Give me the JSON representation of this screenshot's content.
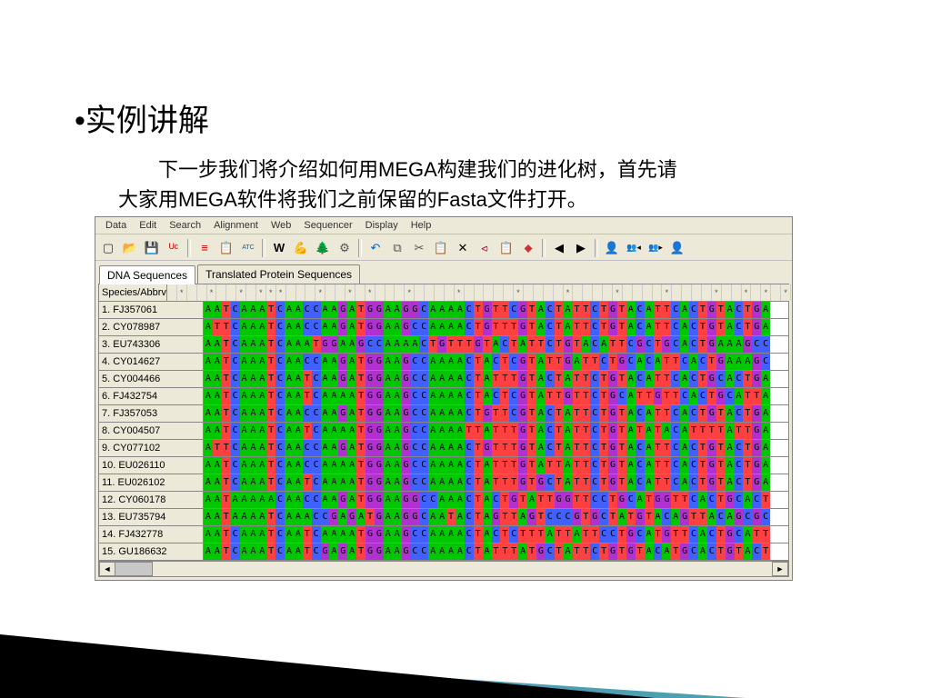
{
  "slide": {
    "bullet": "•",
    "title": "实例讲解",
    "desc_line1": "　　下一步我们将介绍如何用MEGA构建我们的进化树，首先请",
    "desc_line2": "大家用MEGA软件将我们之前保留的Fasta文件打开。"
  },
  "app": {
    "menu": [
      "Data",
      "Edit",
      "Search",
      "Alignment",
      "Web",
      "Sequencer",
      "Display",
      "Help"
    ],
    "toolbar_icons": [
      {
        "name": "new-icon",
        "glyph": "▢",
        "color": "#333"
      },
      {
        "name": "open-icon",
        "glyph": "📂",
        "color": "#b8860b"
      },
      {
        "name": "save-icon",
        "glyph": "💾",
        "color": "#1040c0"
      },
      {
        "name": "format-icon",
        "glyph": "ᵁᶜ",
        "color": "#c00"
      },
      {
        "sep": true
      },
      {
        "name": "align-marked-icon",
        "glyph": "≡",
        "color": "#c00"
      },
      {
        "name": "align-clipboard-icon",
        "glyph": "📋",
        "color": "#886"
      },
      {
        "name": "align-codon-icon",
        "glyph": "ATC",
        "color": "#06a",
        "fs": "7px"
      },
      {
        "sep": true
      },
      {
        "name": "w-icon",
        "glyph": "W",
        "color": "#000",
        "bold": true
      },
      {
        "name": "muscle-icon",
        "glyph": "💪",
        "color": "#c70"
      },
      {
        "name": "tree-icon",
        "glyph": "🌲",
        "color": "#070"
      },
      {
        "name": "settings-icon",
        "glyph": "⚙",
        "color": "#555"
      },
      {
        "sep": true
      },
      {
        "name": "undo-icon",
        "glyph": "↶",
        "color": "#06c"
      },
      {
        "name": "copy-icon",
        "glyph": "⧉",
        "color": "#555"
      },
      {
        "name": "cut-icon",
        "glyph": "✂",
        "color": "#555"
      },
      {
        "name": "paste-icon",
        "glyph": "📋",
        "color": "#555"
      },
      {
        "name": "delete-icon",
        "glyph": "✕",
        "color": "#000"
      },
      {
        "name": "delete-gap-icon",
        "glyph": "⪦",
        "color": "#a04"
      },
      {
        "name": "clipboard2-icon",
        "glyph": "📋",
        "color": "#c33"
      },
      {
        "name": "mark-icon",
        "glyph": "⬥",
        "color": "#c33"
      },
      {
        "sep": true
      },
      {
        "name": "prev-icon",
        "glyph": "◀",
        "color": "#000"
      },
      {
        "name": "next-icon",
        "glyph": "▶",
        "color": "#000"
      },
      {
        "sep": true
      },
      {
        "name": "find-icon",
        "glyph": "👤",
        "color": "#000"
      },
      {
        "name": "find-prev-icon",
        "glyph": "👥◂",
        "color": "#000",
        "fs": "9px"
      },
      {
        "name": "find-next-icon",
        "glyph": "👥▸",
        "color": "#000",
        "fs": "9px"
      },
      {
        "name": "find-mark-icon",
        "glyph": "👤",
        "color": "#000"
      }
    ],
    "tabs": [
      {
        "label": "DNA Sequences",
        "active": true
      },
      {
        "label": "Translated Protein Sequences",
        "active": false
      }
    ],
    "header_species": "Species/Abbrv",
    "base_colors": {
      "A": "nA",
      "T": "nT",
      "C": "nC",
      "G": "nG"
    },
    "rows": [
      {
        "n": "1.",
        "id": "FJ357061",
        "seq": "AATCAAATCAACCAAGATGGAAGGCAAAACTGTTCGTACTATTCTGTACATTCACTGTACTGAAAGCTCA"
      },
      {
        "n": "2.",
        "id": "CY078987",
        "seq": "ATTCAAATCAACCAAGATGGAAGCCAAAACTGTTTGTACTATTCTGTACATTCACTGTACTGAAAGCTCA"
      },
      {
        "n": "3.",
        "id": "EU743306",
        "seq": "AATCAAATCAAATGGAAGCCAAAACTGTTTGTACTATTCTGTACATTCGCTGCACTGAAAGCCAAAGCCA"
      },
      {
        "n": "4.",
        "id": "CY014627",
        "seq": "AATCAAATCAACCAAGATGGAAGCCAAAACTACTCGTATTGATTCTGCACATTCACTGAAAGCCAAAGCA"
      },
      {
        "n": "5.",
        "id": "CY004466",
        "seq": "AATCAAATCAATCAAGATGGAAGCCAAAACTATTTGTACTATTCTGTACATTCACTGCACTGAAAGCTCA"
      },
      {
        "n": "6.",
        "id": "FJ432754",
        "seq": "AATCAAATCAATCAAAATGGAAGCCAAAACTACTCGTATTGTTCTGCATTGTTCACTGCATTAAAGCCAA"
      },
      {
        "n": "7.",
        "id": "FJ357053",
        "seq": "AATCAAATCAACCAAGATGGAAGCCAAAACTGTTCGTACTATTCTGTACATTCACTGTACTGAAAGCTCA"
      },
      {
        "n": "8.",
        "id": "CY004507",
        "seq": "AATCAAATCAATCAAAATGGAAGCCAAAATTATTTGTACTATTCTGTATATACATTTTATTGAAACTGCG"
      },
      {
        "n": "9.",
        "id": "CY077102",
        "seq": "ATTCAAATCAACCAAGATGGAAGCCAAAACTGTTTGTACTATTCTGTACATTCACTGTACTGAAAGCTCA"
      },
      {
        "n": "10.",
        "id": "EU026110",
        "seq": "AATCAAATCAACCAAAATGGAAGCCAAAACTATTTGTATTATTCTGTACATTCACTGTACTGAAAGCCAA"
      },
      {
        "n": "11.",
        "id": "EU026102",
        "seq": "AATCAAATCAATCAAAATGGAAGCCAAAACTATTTGTGCTATTCTGTACATTCACTGTACTGAAAGCCGT"
      },
      {
        "n": "12.",
        "id": "CY060178",
        "seq": "AATAAAAACAACCAAGATGGAAGGCCAAACTACTGTATTGGTTCCTGCATGGTTCACTGCACTAAAGCCC"
      },
      {
        "n": "13.",
        "id": "EU735794",
        "seq": "AATAAAATCAAACCGAGATGAAGGCAATACTAGTTAGTCCCGTGCTATGTACAGTTACAGCGCCAAATCA"
      },
      {
        "n": "14.",
        "id": "FJ432778",
        "seq": "AATCAAATCAATCAAAATGGAAGCCAAAACTACTCTTTATTATTCCTGCATGTTCACTGCATTAAAAGCC"
      },
      {
        "n": "15.",
        "id": "GU186632",
        "seq": "AATCAAATCAATCGAGATGGAAGCCAAAACTATTTATGCTATTCTGTGTACATGCACTGTACTGAAAGCT"
      }
    ],
    "star_cols": [
      1,
      4,
      7,
      9,
      10,
      11,
      15,
      18,
      20,
      24,
      29,
      35,
      40,
      45,
      50,
      55,
      58,
      60,
      62
    ]
  }
}
